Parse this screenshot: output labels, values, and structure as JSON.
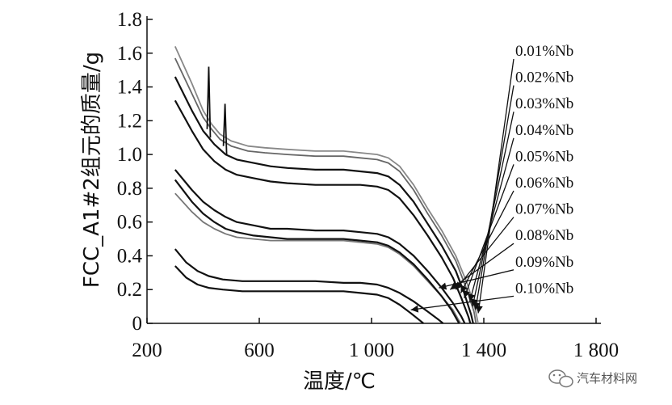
{
  "watermark": {
    "text": "汽车材料网",
    "icon": "wechat-icon"
  },
  "chart_data": {
    "type": "line",
    "xlabel": "温度/℃",
    "ylabel": "FCC_A1#2组元的质量/g",
    "xlim": [
      200,
      1800
    ],
    "ylim": [
      0,
      1.8
    ],
    "x_ticks": [
      {
        "v": 200,
        "label": "200"
      },
      {
        "v": 600,
        "label": "600"
      },
      {
        "v": 1000,
        "label": "1 000"
      },
      {
        "v": 1400,
        "label": "1 400"
      },
      {
        "v": 1800,
        "label": "1 800"
      }
    ],
    "y_ticks": [
      {
        "v": 0,
        "label": "0"
      },
      {
        "v": 0.2,
        "label": "0.2"
      },
      {
        "v": 0.4,
        "label": "0.4"
      },
      {
        "v": 0.6,
        "label": "0.6"
      },
      {
        "v": 0.8,
        "label": "0.8"
      },
      {
        "v": 1.0,
        "label": "1.0"
      },
      {
        "v": 1.2,
        "label": "1.2"
      },
      {
        "v": 1.4,
        "label": "1.4"
      },
      {
        "v": 1.6,
        "label": "1.6"
      },
      {
        "v": 1.8,
        "label": "1.8"
      }
    ],
    "grid": false,
    "legend_position": "right, labels with arrows pointing to curve ends",
    "series": [
      {
        "name": "0.01%Nb",
        "color": "#888888",
        "points": [
          [
            300,
            1.64
          ],
          [
            360,
            1.42
          ],
          [
            400,
            1.26
          ],
          [
            430,
            1.18
          ],
          [
            460,
            1.12
          ],
          [
            500,
            1.08
          ],
          [
            560,
            1.05
          ],
          [
            620,
            1.04
          ],
          [
            700,
            1.03
          ],
          [
            800,
            1.02
          ],
          [
            900,
            1.02
          ],
          [
            960,
            1.01
          ],
          [
            1020,
            1.0
          ],
          [
            1060,
            0.98
          ],
          [
            1100,
            0.93
          ],
          [
            1150,
            0.82
          ],
          [
            1200,
            0.68
          ],
          [
            1250,
            0.55
          ],
          [
            1300,
            0.4
          ],
          [
            1340,
            0.24
          ],
          [
            1370,
            0.08
          ],
          [
            1380,
            0.0
          ]
        ],
        "end": [
          1380,
          0.06
        ]
      },
      {
        "name": "0.02%Nb",
        "color": "#666666",
        "points": [
          [
            300,
            1.57
          ],
          [
            360,
            1.36
          ],
          [
            400,
            1.22
          ],
          [
            430,
            1.15
          ],
          [
            460,
            1.09
          ],
          [
            500,
            1.05
          ],
          [
            560,
            1.02
          ],
          [
            620,
            1.01
          ],
          [
            700,
            1.0
          ],
          [
            800,
            0.99
          ],
          [
            900,
            0.99
          ],
          [
            960,
            0.98
          ],
          [
            1020,
            0.97
          ],
          [
            1060,
            0.95
          ],
          [
            1100,
            0.9
          ],
          [
            1150,
            0.79
          ],
          [
            1200,
            0.65
          ],
          [
            1250,
            0.52
          ],
          [
            1300,
            0.37
          ],
          [
            1335,
            0.22
          ],
          [
            1365,
            0.07
          ],
          [
            1372,
            0.0
          ]
        ],
        "end": [
          1370,
          0.08
        ]
      },
      {
        "name": "0.03%Nb",
        "color": "#111111",
        "points": [
          [
            300,
            1.46
          ],
          [
            360,
            1.26
          ],
          [
            400,
            1.14
          ],
          [
            440,
            1.06
          ],
          [
            480,
            1.0
          ],
          [
            520,
            0.97
          ],
          [
            580,
            0.95
          ],
          [
            640,
            0.93
          ],
          [
            700,
            0.92
          ],
          [
            800,
            0.91
          ],
          [
            900,
            0.91
          ],
          [
            960,
            0.9
          ],
          [
            1020,
            0.89
          ],
          [
            1060,
            0.87
          ],
          [
            1100,
            0.82
          ],
          [
            1150,
            0.72
          ],
          [
            1200,
            0.59
          ],
          [
            1250,
            0.46
          ],
          [
            1300,
            0.31
          ],
          [
            1330,
            0.18
          ],
          [
            1355,
            0.05
          ],
          [
            1362,
            0.0
          ]
        ],
        "end": [
          1360,
          0.1
        ]
      },
      {
        "name": "0.04%Nb",
        "color": "#111111",
        "points": [
          [
            300,
            1.32
          ],
          [
            360,
            1.14
          ],
          [
            400,
            1.03
          ],
          [
            440,
            0.96
          ],
          [
            480,
            0.91
          ],
          [
            520,
            0.88
          ],
          [
            580,
            0.86
          ],
          [
            640,
            0.84
          ],
          [
            700,
            0.83
          ],
          [
            800,
            0.82
          ],
          [
            900,
            0.82
          ],
          [
            960,
            0.82
          ],
          [
            1020,
            0.81
          ],
          [
            1060,
            0.79
          ],
          [
            1100,
            0.74
          ],
          [
            1150,
            0.64
          ],
          [
            1200,
            0.52
          ],
          [
            1250,
            0.39
          ],
          [
            1290,
            0.27
          ],
          [
            1320,
            0.15
          ],
          [
            1345,
            0.04
          ],
          [
            1352,
            0.0
          ]
        ],
        "end": [
          1350,
          0.13
        ]
      },
      {
        "name": "0.05%Nb",
        "color": "#111111",
        "points": [
          [
            300,
            0.91
          ],
          [
            360,
            0.79
          ],
          [
            400,
            0.72
          ],
          [
            440,
            0.67
          ],
          [
            480,
            0.63
          ],
          [
            520,
            0.6
          ],
          [
            580,
            0.58
          ],
          [
            640,
            0.56
          ],
          [
            700,
            0.56
          ],
          [
            800,
            0.55
          ],
          [
            900,
            0.55
          ],
          [
            960,
            0.54
          ],
          [
            1020,
            0.53
          ],
          [
            1060,
            0.51
          ],
          [
            1100,
            0.47
          ],
          [
            1150,
            0.4
          ],
          [
            1200,
            0.31
          ],
          [
            1250,
            0.21
          ],
          [
            1290,
            0.12
          ],
          [
            1320,
            0.04
          ],
          [
            1332,
            0.0
          ]
        ],
        "end": [
          1330,
          0.15
        ]
      },
      {
        "name": "0.06%Nb",
        "color": "#777777",
        "points": [
          [
            300,
            0.77
          ],
          [
            360,
            0.66
          ],
          [
            400,
            0.6
          ],
          [
            440,
            0.56
          ],
          [
            480,
            0.53
          ],
          [
            520,
            0.51
          ],
          [
            580,
            0.5
          ],
          [
            640,
            0.49
          ],
          [
            700,
            0.49
          ],
          [
            800,
            0.49
          ],
          [
            900,
            0.49
          ],
          [
            960,
            0.48
          ],
          [
            1020,
            0.47
          ],
          [
            1060,
            0.45
          ],
          [
            1100,
            0.41
          ],
          [
            1150,
            0.34
          ],
          [
            1200,
            0.25
          ],
          [
            1250,
            0.16
          ],
          [
            1290,
            0.08
          ],
          [
            1310,
            0.02
          ],
          [
            1318,
            0.0
          ]
        ],
        "end": [
          1318,
          0.18
        ]
      },
      {
        "name": "0.07%Nb",
        "color": "#111111",
        "points": [
          [
            300,
            0.85
          ],
          [
            360,
            0.72
          ],
          [
            400,
            0.65
          ],
          [
            440,
            0.6
          ],
          [
            480,
            0.56
          ],
          [
            520,
            0.54
          ],
          [
            580,
            0.52
          ],
          [
            640,
            0.51
          ],
          [
            700,
            0.5
          ],
          [
            800,
            0.5
          ],
          [
            900,
            0.5
          ],
          [
            960,
            0.49
          ],
          [
            1020,
            0.48
          ],
          [
            1060,
            0.46
          ],
          [
            1100,
            0.42
          ],
          [
            1150,
            0.35
          ],
          [
            1200,
            0.26
          ],
          [
            1250,
            0.16
          ],
          [
            1285,
            0.08
          ],
          [
            1305,
            0.02
          ],
          [
            1312,
            0.0
          ]
        ],
        "end": [
          1300,
          0.2
        ]
      },
      {
        "name": "0.08%Nb",
        "color": "#111111",
        "points": [
          [
            300,
            0.44
          ],
          [
            340,
            0.36
          ],
          [
            380,
            0.31
          ],
          [
            420,
            0.28
          ],
          [
            470,
            0.26
          ],
          [
            540,
            0.25
          ],
          [
            620,
            0.25
          ],
          [
            700,
            0.25
          ],
          [
            800,
            0.25
          ],
          [
            900,
            0.24
          ],
          [
            960,
            0.24
          ],
          [
            1020,
            0.23
          ],
          [
            1060,
            0.21
          ],
          [
            1100,
            0.18
          ],
          [
            1150,
            0.13
          ],
          [
            1200,
            0.07
          ],
          [
            1240,
            0.02
          ],
          [
            1255,
            0.0
          ]
        ],
        "end": [
          1280,
          0.2
        ]
      },
      {
        "name": "0.09%Nb",
        "color": "#111111",
        "points": [
          [
            300,
            0.34
          ],
          [
            340,
            0.27
          ],
          [
            380,
            0.23
          ],
          [
            420,
            0.21
          ],
          [
            470,
            0.2
          ],
          [
            540,
            0.19
          ],
          [
            620,
            0.19
          ],
          [
            700,
            0.19
          ],
          [
            800,
            0.19
          ],
          [
            900,
            0.19
          ],
          [
            960,
            0.18
          ],
          [
            1020,
            0.17
          ],
          [
            1060,
            0.15
          ],
          [
            1100,
            0.11
          ],
          [
            1140,
            0.06
          ],
          [
            1170,
            0.02
          ],
          [
            1185,
            0.0
          ]
        ],
        "end": [
          1240,
          0.21
        ]
      },
      {
        "name": "0.10%Nb",
        "color": "#111111",
        "points": [],
        "end": [
          1140,
          0.08
        ]
      }
    ],
    "spikes": [
      {
        "x": 420,
        "base": 1.15,
        "top": 1.52
      },
      {
        "x": 478,
        "base": 1.05,
        "top": 1.3
      }
    ]
  }
}
